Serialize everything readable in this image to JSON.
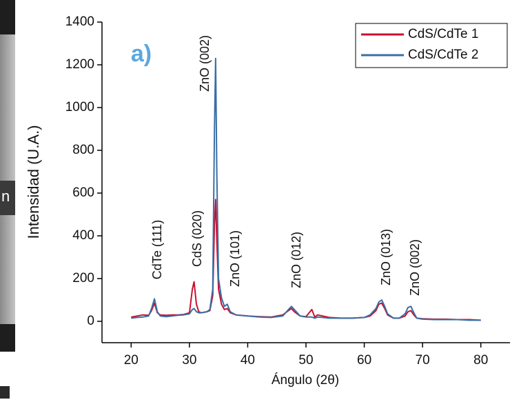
{
  "side_label": "n",
  "chart_data": {
    "type": "line",
    "panel_label": "a)",
    "x_label": "Ángulo (2θ)",
    "y_label": "Intensidad (U.A.)",
    "xlim": [
      15,
      85
    ],
    "xticks": [
      20,
      30,
      40,
      50,
      60,
      70,
      80
    ],
    "ylim": [
      -100,
      1400
    ],
    "yticks": [
      0,
      200,
      400,
      600,
      800,
      1000,
      1200,
      1400
    ],
    "legend": "upper right",
    "annotations": [
      "CdTe (111)",
      "CdS (020)",
      "ZnO (002)",
      "ZnO (101)",
      "ZnO (012)",
      "ZnO (013)",
      "ZnO (002)"
    ],
    "x": [
      20,
      21,
      22,
      23,
      23.5,
      24,
      24.5,
      25,
      26,
      27,
      28,
      29,
      30,
      30.5,
      30.8,
      31.2,
      31.6,
      32,
      33,
      33.5,
      34,
      34.3,
      34.5,
      34.7,
      35,
      35.5,
      36,
      36.5,
      37,
      38,
      40,
      42,
      44,
      46,
      47,
      47.5,
      48,
      49,
      50,
      51,
      51.5,
      52,
      54,
      56,
      58,
      60,
      61,
      62,
      62.5,
      63,
      63.5,
      64,
      65,
      66,
      67,
      67.5,
      68,
      68.5,
      69,
      70,
      72,
      74,
      76,
      78,
      80
    ],
    "series": [
      {
        "name": "CdS/CdTe 1",
        "color": "#c8102e",
        "values": [
          20,
          25,
          30,
          28,
          50,
          85,
          40,
          30,
          28,
          30,
          30,
          32,
          40,
          150,
          185,
          80,
          45,
          40,
          45,
          50,
          120,
          450,
          570,
          380,
          150,
          80,
          55,
          60,
          40,
          30,
          25,
          22,
          20,
          30,
          50,
          60,
          45,
          25,
          22,
          55,
          20,
          30,
          18,
          15,
          15,
          18,
          25,
          50,
          80,
          85,
          60,
          30,
          15,
          15,
          25,
          45,
          50,
          30,
          15,
          12,
          10,
          10,
          8,
          8,
          5
        ]
      },
      {
        "name": "CdS/CdTe 2",
        "color": "#3a6ea5",
        "values": [
          15,
          18,
          20,
          25,
          60,
          105,
          45,
          25,
          22,
          25,
          28,
          30,
          35,
          55,
          60,
          45,
          40,
          40,
          45,
          55,
          150,
          900,
          1230,
          700,
          200,
          110,
          70,
          80,
          45,
          30,
          25,
          20,
          18,
          25,
          55,
          70,
          55,
          25,
          20,
          20,
          15,
          20,
          15,
          15,
          15,
          18,
          30,
          60,
          90,
          100,
          70,
          35,
          15,
          15,
          35,
          65,
          70,
          40,
          15,
          10,
          8,
          8,
          8,
          5,
          5
        ]
      }
    ]
  }
}
